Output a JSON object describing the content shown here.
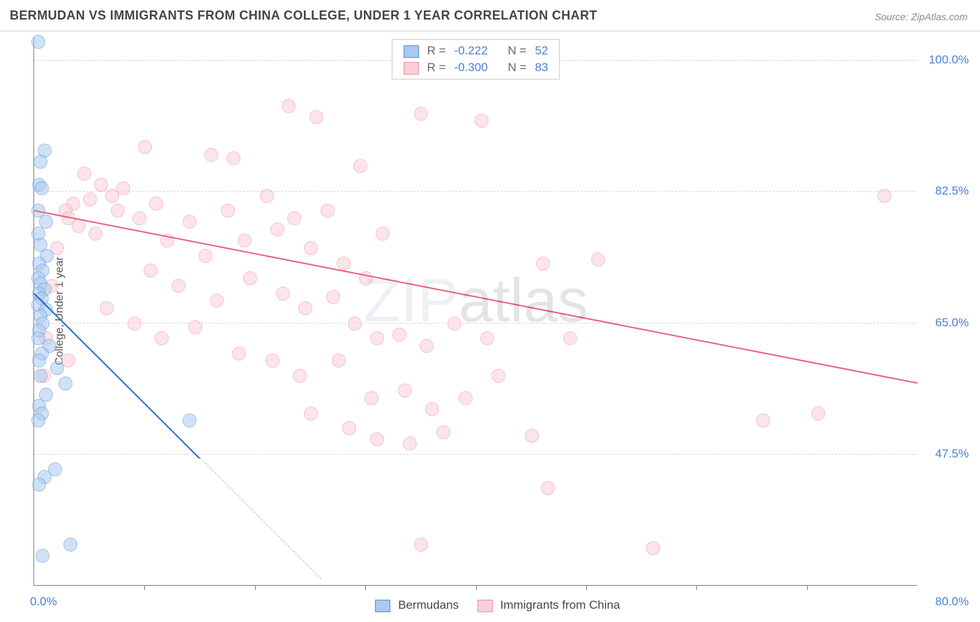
{
  "header": {
    "title": "BERMUDAN VS IMMIGRANTS FROM CHINA COLLEGE, UNDER 1 YEAR CORRELATION CHART",
    "source_prefix": "Source: ",
    "source_name": "ZipAtlas.com"
  },
  "ylabel": "College, Under 1 year",
  "watermark": "ZIPatlas",
  "axes": {
    "x_min": 0.0,
    "x_max": 80.0,
    "y_min": 30.0,
    "y_max": 103.0,
    "x_left_label": "0.0%",
    "x_right_label": "80.0%",
    "y_right_ticks": [
      {
        "v": 100.0,
        "label": "100.0%"
      },
      {
        "v": 82.5,
        "label": "82.5%"
      },
      {
        "v": 65.0,
        "label": "65.0%"
      },
      {
        "v": 47.5,
        "label": "47.5%"
      }
    ],
    "x_ticks": [
      10,
      20,
      30,
      40,
      50,
      60,
      70
    ],
    "gridline_color": "#d8d8d8",
    "axis_color": "#808080",
    "background": "#ffffff"
  },
  "series": {
    "a": {
      "label": "Bermudans",
      "R_label": "R =",
      "R": "-0.222",
      "N_label": "N =",
      "N": "52",
      "point_fill": "#a8c9f0",
      "point_stroke": "#5a8fd6",
      "line_color": "#2a6bc4",
      "trend": {
        "x1": 0.0,
        "y1": 69.0,
        "x2": 15.0,
        "y2": 47.0
      },
      "trend_ext": {
        "x1": 15.0,
        "y1": 47.0,
        "x2": 26.0,
        "y2": 30.8
      },
      "points": [
        [
          0.3,
          102.5
        ],
        [
          0.9,
          88.0
        ],
        [
          0.5,
          86.5
        ],
        [
          0.4,
          83.5
        ],
        [
          0.6,
          83.0
        ],
        [
          0.3,
          80.0
        ],
        [
          1.0,
          78.5
        ],
        [
          0.3,
          77.0
        ],
        [
          0.5,
          75.5
        ],
        [
          1.1,
          74.0
        ],
        [
          0.4,
          73.0
        ],
        [
          0.7,
          72.0
        ],
        [
          0.3,
          71.0
        ],
        [
          0.5,
          70.3
        ],
        [
          0.9,
          69.5
        ],
        [
          0.4,
          69.0
        ],
        [
          0.6,
          68.3
        ],
        [
          0.3,
          67.5
        ],
        [
          1.0,
          66.8
        ],
        [
          0.5,
          66.0
        ],
        [
          0.7,
          65.0
        ],
        [
          0.4,
          64.0
        ],
        [
          0.3,
          63.0
        ],
        [
          1.3,
          62.0
        ],
        [
          0.6,
          61.0
        ],
        [
          0.4,
          60.0
        ],
        [
          2.0,
          59.0
        ],
        [
          0.5,
          58.0
        ],
        [
          2.8,
          57.0
        ],
        [
          1.0,
          55.5
        ],
        [
          0.4,
          54.0
        ],
        [
          0.6,
          53.0
        ],
        [
          0.3,
          52.0
        ],
        [
          1.8,
          45.5
        ],
        [
          0.9,
          44.5
        ],
        [
          0.4,
          43.5
        ],
        [
          3.2,
          35.5
        ],
        [
          0.7,
          34.0
        ],
        [
          14.0,
          52.0
        ]
      ]
    },
    "b": {
      "label": "Immigrants from China",
      "R_label": "R =",
      "R": "-0.300",
      "N_label": "N =",
      "N": "83",
      "point_fill": "#fbcfd8",
      "point_stroke": "#ef8fa8",
      "line_color": "#ec5f82",
      "trend": {
        "x1": 0.0,
        "y1": 80.0,
        "x2": 80.0,
        "y2": 57.0
      },
      "points": [
        [
          23.0,
          94.0
        ],
        [
          25.5,
          92.5
        ],
        [
          35.0,
          93.0
        ],
        [
          40.5,
          92.0
        ],
        [
          10.0,
          88.5
        ],
        [
          16.0,
          87.5
        ],
        [
          18.0,
          87.0
        ],
        [
          29.5,
          86.0
        ],
        [
          4.5,
          85.0
        ],
        [
          6.0,
          83.5
        ],
        [
          8.0,
          83.0
        ],
        [
          7.0,
          82.0
        ],
        [
          5.0,
          81.5
        ],
        [
          3.5,
          81.0
        ],
        [
          2.8,
          80.0
        ],
        [
          3.0,
          79.0
        ],
        [
          4.0,
          78.0
        ],
        [
          5.5,
          77.0
        ],
        [
          7.5,
          80.0
        ],
        [
          9.5,
          79.0
        ],
        [
          11.0,
          81.0
        ],
        [
          12.0,
          76.0
        ],
        [
          14.0,
          78.5
        ],
        [
          15.5,
          74.0
        ],
        [
          17.5,
          80.0
        ],
        [
          19.0,
          76.0
        ],
        [
          21.0,
          82.0
        ],
        [
          22.0,
          77.5
        ],
        [
          23.5,
          79.0
        ],
        [
          25.0,
          75.0
        ],
        [
          26.5,
          80.0
        ],
        [
          28.0,
          73.0
        ],
        [
          30.0,
          71.0
        ],
        [
          31.5,
          77.0
        ],
        [
          10.5,
          72.0
        ],
        [
          13.0,
          70.0
        ],
        [
          16.5,
          68.0
        ],
        [
          19.5,
          71.0
        ],
        [
          22.5,
          69.0
        ],
        [
          24.5,
          67.0
        ],
        [
          27.0,
          68.5
        ],
        [
          29.0,
          65.0
        ],
        [
          31.0,
          63.0
        ],
        [
          6.5,
          67.0
        ],
        [
          9.0,
          65.0
        ],
        [
          11.5,
          63.0
        ],
        [
          14.5,
          64.5
        ],
        [
          18.5,
          61.0
        ],
        [
          21.5,
          60.0
        ],
        [
          24.0,
          58.0
        ],
        [
          27.5,
          60.0
        ],
        [
          33.0,
          63.5
        ],
        [
          35.5,
          62.0
        ],
        [
          38.0,
          65.0
        ],
        [
          41.0,
          63.0
        ],
        [
          30.5,
          55.0
        ],
        [
          33.5,
          56.0
        ],
        [
          36.0,
          53.5
        ],
        [
          39.0,
          55.0
        ],
        [
          42.0,
          58.0
        ],
        [
          46.0,
          73.0
        ],
        [
          48.5,
          63.0
        ],
        [
          51.0,
          73.5
        ],
        [
          25.0,
          53.0
        ],
        [
          28.5,
          51.0
        ],
        [
          31.0,
          49.5
        ],
        [
          34.0,
          49.0
        ],
        [
          37.0,
          50.5
        ],
        [
          45.0,
          50.0
        ],
        [
          35.0,
          35.5
        ],
        [
          46.5,
          43.0
        ],
        [
          56.0,
          35.0
        ],
        [
          66.0,
          52.0
        ],
        [
          71.0,
          53.0
        ],
        [
          77.0,
          82.0
        ],
        [
          3.0,
          60.0
        ],
        [
          1.5,
          70.0
        ],
        [
          2.0,
          75.0
        ],
        [
          1.0,
          63.0
        ],
        [
          0.8,
          58.0
        ]
      ]
    }
  },
  "legend_bottom": {
    "a": "Bermudans",
    "b": "Immigrants from China"
  }
}
